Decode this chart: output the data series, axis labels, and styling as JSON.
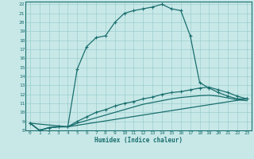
{
  "xlabel": "Humidex (Indice chaleur)",
  "bg_color": "#c8e8e8",
  "plot_bg_color": "#c8e8e8",
  "bottom_bar_color": "#5a9090",
  "line_color": "#1a6e6e",
  "grid_color": "#9ecece",
  "xlim": [
    -0.5,
    23.5
  ],
  "ylim": [
    8,
    22.3
  ],
  "xticks": [
    0,
    1,
    2,
    3,
    4,
    5,
    6,
    7,
    8,
    9,
    10,
    11,
    12,
    13,
    14,
    15,
    16,
    17,
    18,
    19,
    20,
    21,
    22,
    23
  ],
  "yticks": [
    8,
    9,
    10,
    11,
    12,
    13,
    14,
    15,
    16,
    17,
    18,
    19,
    20,
    21,
    22
  ],
  "line1_x": [
    0,
    1,
    2,
    3,
    4,
    5,
    6,
    7,
    8,
    9,
    10,
    11,
    12,
    13,
    14,
    15,
    16,
    17,
    18,
    19,
    20,
    21,
    22,
    23
  ],
  "line1_y": [
    8.8,
    8.0,
    8.3,
    8.4,
    8.4,
    14.8,
    17.3,
    18.3,
    18.5,
    20.0,
    21.0,
    21.3,
    21.5,
    21.7,
    22.0,
    21.5,
    21.3,
    18.5,
    13.3,
    12.7,
    12.2,
    11.8,
    11.5,
    11.5
  ],
  "line2_x": [
    0,
    1,
    2,
    3,
    4,
    5,
    6,
    7,
    8,
    9,
    10,
    11,
    12,
    13,
    14,
    15,
    16,
    17,
    18,
    19,
    20,
    21,
    22,
    23
  ],
  "line2_y": [
    8.8,
    8.0,
    8.3,
    8.4,
    8.4,
    9.0,
    9.5,
    10.0,
    10.3,
    10.7,
    11.0,
    11.2,
    11.5,
    11.7,
    12.0,
    12.2,
    12.3,
    12.5,
    12.7,
    12.8,
    12.5,
    12.2,
    11.8,
    11.5
  ],
  "line3_x": [
    0,
    1,
    2,
    3,
    4,
    5,
    6,
    7,
    8,
    9,
    10,
    11,
    12,
    13,
    14,
    15,
    16,
    17,
    18,
    19,
    20,
    21,
    22,
    23
  ],
  "line3_y": [
    8.8,
    8.0,
    8.3,
    8.4,
    8.4,
    8.8,
    9.1,
    9.4,
    9.7,
    10.0,
    10.3,
    10.6,
    10.9,
    11.1,
    11.3,
    11.5,
    11.65,
    11.75,
    11.85,
    11.9,
    11.8,
    11.6,
    11.4,
    11.3
  ],
  "line4_x": [
    0,
    4,
    23
  ],
  "line4_y": [
    8.8,
    8.4,
    11.5
  ]
}
